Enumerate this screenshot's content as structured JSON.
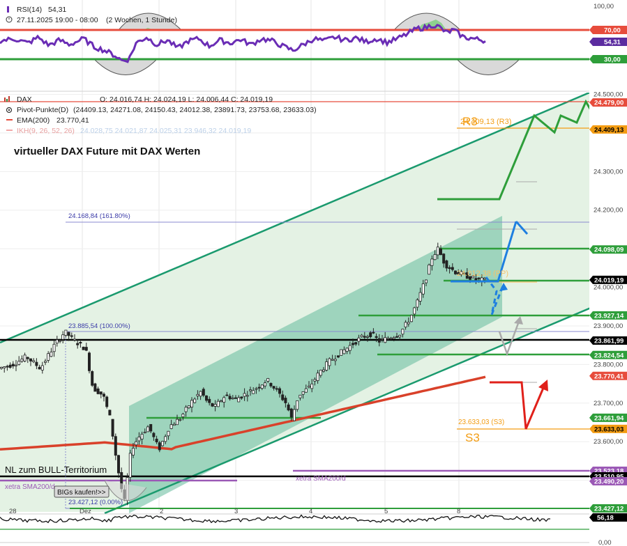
{
  "rsi_panel": {
    "indicator": "RSI(14)",
    "value": "54,31",
    "timerange": "27.11.2025 19:00 - 08:00",
    "interval": "(2 Wochen, 1 Stunde)",
    "ticks": [
      "100,00",
      "70,00",
      "30,00"
    ],
    "badge_value": "54,31"
  },
  "main_panel": {
    "symbol": "DAX",
    "ohlc": "O: 24.016,74  H: 24.024,19  L: 24.006,44  C: 24.019,19",
    "pivot_label": "Pivot-Punkte(D)",
    "pivot_values": "(24409.13,  24271.08,  24150.43,  24012.38,  23891.73,  23753.68,  23633.03)",
    "ema_label": "EMA(200)",
    "ema_value": "23.770,41",
    "ikh_label": "IKH(9, 26, 52, 26)",
    "ikh_values": "24.028,75   24.021,87   24.025,31   23.946,32   24.019,19",
    "headline": "virtueller DAX Future mit DAX Werten",
    "annotations": {
      "fib_top": "24.168,84 (161.80%)",
      "fib_mid": "23.885,54 (100.00%)",
      "fib_low": "23.427,12 (0.00%)",
      "r3_big": "R3",
      "r3_small": "24.409,13 (R3)",
      "pp": "24.012,38 (PP)",
      "s3_small": "23.633,03 (S3)",
      "s3_big": "S3",
      "bull": "NL zum BULL-Territorium",
      "sma_left": "xetra SMA200/d",
      "sma_right": "xetra SMA200/d",
      "bigs": "BIGs kaufen!>>"
    },
    "price_ticks": [
      "24.500,00",
      "24.300,00",
      "24.200,00",
      "24.000,00",
      "23.900,00",
      "23.800,00",
      "23.700,00",
      "23.600,00"
    ],
    "badges": [
      {
        "label": "24.479,00",
        "price": 24479.0,
        "color": "#e74c3c",
        "text_color": "#ffffff"
      },
      {
        "label": "24.409,13",
        "price": 24409.13,
        "color": "#f39c12",
        "text_color": "#000000"
      },
      {
        "label": "24.098,09",
        "price": 24098.09,
        "color": "#2e9e3a",
        "text_color": "#ffffff"
      },
      {
        "label": "24.019,19",
        "price": 24019.19,
        "color": "#000000",
        "text_color": "#ffffff"
      },
      {
        "label": "23.927,14",
        "price": 23927.14,
        "color": "#2e9e3a",
        "text_color": "#ffffff"
      },
      {
        "label": "23.861,99",
        "price": 23861.99,
        "color": "#000000",
        "text_color": "#ffffff"
      },
      {
        "label": "23.824,54",
        "price": 23824.54,
        "color": "#2e9e3a",
        "text_color": "#ffffff"
      },
      {
        "label": "23.770,41",
        "price": 23770.41,
        "color": "#e74c3c",
        "text_color": "#ffffff"
      },
      {
        "label": "23.661,94",
        "price": 23661.94,
        "color": "#2e9e3a",
        "text_color": "#ffffff"
      },
      {
        "label": "23.633,03",
        "price": 23633.03,
        "color": "#f39c12",
        "text_color": "#000000"
      },
      {
        "label": "23.523,18",
        "price": 23523.18,
        "color": "#9b59b6",
        "text_color": "#ffffff"
      },
      {
        "label": "23.510,95",
        "price": 23510.95,
        "color": "#000000",
        "text_color": "#ffffff"
      },
      {
        "label": "23.490,20",
        "price": 23490.2,
        "color": "#9b59b6",
        "text_color": "#ffffff"
      },
      {
        "label": "23.427,12",
        "price": 23427.12,
        "color": "#2e9e3a",
        "text_color": "#ffffff"
      }
    ]
  },
  "osc_panel": {
    "badge_value": "56,18",
    "tick": "0,00"
  },
  "x_axis_labels": [
    "28",
    "Dez",
    "2",
    "3",
    "4",
    "5",
    "8"
  ],
  "colors": {
    "rsi_line": "#6a2db5",
    "upper_band": "#e74c3c",
    "lower_band": "#2e9e3a",
    "channel": "#1a9a6e",
    "ema": "#d9412a",
    "pivot_green": "#2e9e3a",
    "r3": "#f39c12",
    "arrow_blue": "#1e7fe0",
    "arrow_red": "#e0201a",
    "fib_line": "#8a8ad0"
  },
  "chart_data": {
    "type": "candlestick",
    "title": "virtueller DAX Future mit DAX Werten",
    "symbol": "DAX",
    "interval": "1 Stunde",
    "x": [
      "28",
      "Dez",
      "2",
      "3",
      "4",
      "5",
      "8"
    ],
    "ylim": [
      23400,
      24520
    ],
    "last": {
      "open": 24016.74,
      "high": 24024.19,
      "low": 24006.44,
      "close": 24019.19
    },
    "pivot_points": {
      "R3": 24409.13,
      "R2": 24271.08,
      "R1": 24150.43,
      "PP": 24012.38,
      "S1": 23891.73,
      "S2": 23753.68,
      "S3": 23633.03
    },
    "ema200": 23770.41,
    "fibonacci": [
      {
        "level": "161.80%",
        "price": 24168.84
      },
      {
        "level": "100.00%",
        "price": 23885.54
      },
      {
        "level": "0.00%",
        "price": 23427.12
      }
    ],
    "rsi": {
      "period": 14,
      "value": 54.31,
      "upper": 70,
      "lower": 30
    },
    "oscillator_value": 56.18
  }
}
